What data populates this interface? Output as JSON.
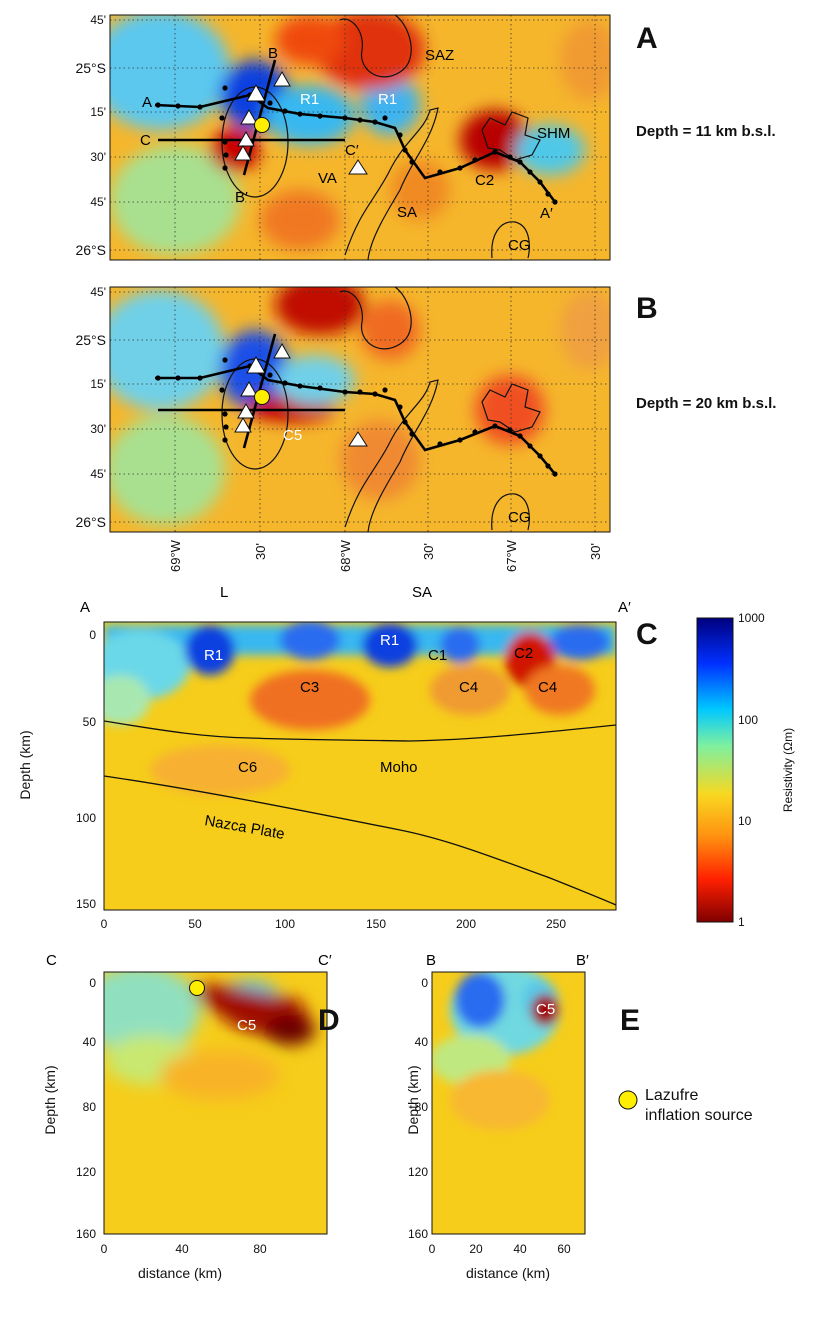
{
  "panels": {
    "A": {
      "letter": "A",
      "depth": "Depth = 11 km b.s.l."
    },
    "B": {
      "letter": "B",
      "depth": "Depth = 20 km b.s.l."
    },
    "C": {
      "letter": "C"
    },
    "D": {
      "letter": "D"
    },
    "E": {
      "letter": "E"
    }
  },
  "map_axes": {
    "lat_ticks": [
      "45'",
      "25°S",
      "15'",
      "30'",
      "45'",
      "26°S"
    ],
    "lon_ticks": [
      "69°W",
      "30'",
      "68°W",
      "30'",
      "67°W",
      "30'"
    ]
  },
  "map_A_labels": {
    "A": "A",
    "A_prime": "A′",
    "B": "B",
    "B_prime": "B′",
    "C": "C",
    "C_prime": "C′",
    "SAZ": "SAZ",
    "R1a": "R1",
    "R1b": "R1",
    "SHM": "SHM",
    "VA": "VA",
    "C2": "C2",
    "SA": "SA",
    "CG": "CG"
  },
  "map_B_labels": {
    "C5": "C5",
    "CG": "CG"
  },
  "section_C": {
    "endpoints": {
      "left": "A",
      "right": "A′"
    },
    "top_labels": {
      "L": "L",
      "SA": "SA"
    },
    "anomalies": {
      "R1a": "R1",
      "R1b": "R1",
      "C1": "C1",
      "C2": "C2",
      "C3": "C3",
      "C4a": "C4",
      "C4b": "C4",
      "C6": "C6"
    },
    "moho": "Moho",
    "nazca": "Nazca Plate",
    "ylabel": "Depth (km)",
    "y_ticks": [
      "0",
      "50",
      "100",
      "150"
    ],
    "x_ticks": [
      "0",
      "50",
      "100",
      "150",
      "200",
      "250"
    ]
  },
  "colorbar": {
    "title": "Resistivity (Ωm)",
    "ticks": [
      "1000",
      "100",
      "10",
      "1"
    ]
  },
  "section_D": {
    "endpoints": {
      "left": "C",
      "right": "C′"
    },
    "anomaly": "C5",
    "ylabel": "Depth (km)",
    "xlabel": "distance (km)",
    "y_ticks": [
      "0",
      "40",
      "80",
      "120",
      "160"
    ],
    "x_ticks": [
      "0",
      "40",
      "80"
    ]
  },
  "section_E": {
    "endpoints": {
      "left": "B",
      "right": "B′"
    },
    "anomaly": "C5",
    "ylabel": "Depth (km)",
    "xlabel": "distance (km)",
    "y_ticks": [
      "0",
      "40",
      "80",
      "120",
      "160"
    ],
    "x_ticks": [
      "0",
      "20",
      "40",
      "60"
    ]
  },
  "legend": {
    "line1": "Lazufre",
    "line2": "inflation source",
    "marker_color": "#ffee00"
  },
  "colors": {
    "conductive": "#8b0000",
    "mid": "#f6c020",
    "resistive": "#00008b"
  }
}
